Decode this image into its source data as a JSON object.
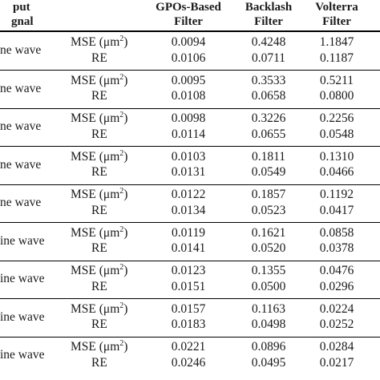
{
  "header": {
    "input_signal_line1": "put",
    "input_signal_line2": "gnal",
    "columns": [
      {
        "line1": "GPOs-Based",
        "line2": "Filter"
      },
      {
        "line1": "Backlash",
        "line2": "Filter"
      },
      {
        "line1": "Volterra",
        "line2": "Filter"
      }
    ]
  },
  "rows": [
    {
      "signal": "ne wave",
      "mse_label": "MSE (μm",
      "mse_sup": "2",
      "mse_close": ")",
      "re_label": "RE",
      "mse": [
        "0.0094",
        "0.4248",
        "1.1847"
      ],
      "re": [
        "0.0106",
        "0.0711",
        "0.1187"
      ]
    },
    {
      "signal": "ne wave",
      "mse_label": "MSE (μm",
      "mse_sup": "2",
      "mse_close": ")",
      "re_label": "RE",
      "mse": [
        "0.0095",
        "0.3533",
        "0.5211"
      ],
      "re": [
        "0.0108",
        "0.0658",
        "0.0800"
      ]
    },
    {
      "signal": "ne wave",
      "mse_label": "MSE (μm",
      "mse_sup": "2",
      "mse_close": ")",
      "re_label": "RE",
      "mse": [
        "0.0098",
        "0.3226",
        "0.2256"
      ],
      "re": [
        "0.0114",
        "0.0655",
        "0.0548"
      ]
    },
    {
      "signal": "ne wave",
      "mse_label": "MSE (μm",
      "mse_sup": "2",
      "mse_close": ")",
      "re_label": "RE",
      "mse": [
        "0.0103",
        "0.1811",
        "0.1310"
      ],
      "re": [
        "0.0131",
        "0.0549",
        "0.0466"
      ]
    },
    {
      "signal": "ne wave",
      "mse_label": "MSE (μm",
      "mse_sup": "2",
      "mse_close": ")",
      "re_label": "RE",
      "mse": [
        "0.0122",
        "0.1857",
        "0.1192"
      ],
      "re": [
        "0.0134",
        "0.0523",
        "0.0417"
      ]
    },
    {
      "signal": "ine wave",
      "mse_label": "MSE (μm",
      "mse_sup": "2",
      "mse_close": ")",
      "re_label": "RE",
      "mse": [
        "0.0119",
        "0.1621",
        "0.0858"
      ],
      "re": [
        "0.0141",
        "0.0520",
        "0.0378"
      ]
    },
    {
      "signal": "ine wave",
      "mse_label": "MSE (μm",
      "mse_sup": "2",
      "mse_close": ")",
      "re_label": "RE",
      "mse": [
        "0.0123",
        "0.1355",
        "0.0476"
      ],
      "re": [
        "0.0151",
        "0.0500",
        "0.0296"
      ]
    },
    {
      "signal": "ine wave",
      "mse_label": "MSE (μm",
      "mse_sup": "2",
      "mse_close": ")",
      "re_label": "RE",
      "mse": [
        "0.0157",
        "0.1163",
        "0.0224"
      ],
      "re": [
        "0.0183",
        "0.0498",
        "0.0252"
      ]
    },
    {
      "signal": "ine wave",
      "mse_label": "MSE (μm",
      "mse_sup": "2",
      "mse_close": ")",
      "re_label": "RE",
      "mse": [
        "0.0221",
        "0.0896",
        "0.0284"
      ],
      "re": [
        "0.0246",
        "0.0495",
        "0.0217"
      ]
    }
  ]
}
